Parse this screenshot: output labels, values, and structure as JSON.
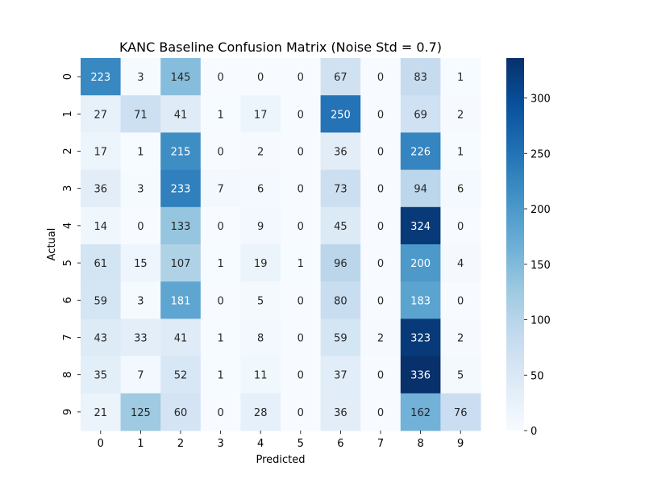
{
  "chart_data": {
    "type": "heatmap",
    "title": "KANC Baseline Confusion Matrix (Noise Std = 0.7)",
    "xlabel": "Predicted",
    "ylabel": "Actual",
    "x_categories": [
      "0",
      "1",
      "2",
      "3",
      "4",
      "5",
      "6",
      "7",
      "8",
      "9"
    ],
    "y_categories": [
      "0",
      "1",
      "2",
      "3",
      "4",
      "5",
      "6",
      "7",
      "8",
      "9"
    ],
    "values": [
      [
        223,
        3,
        145,
        0,
        0,
        0,
        67,
        0,
        83,
        1
      ],
      [
        27,
        71,
        41,
        1,
        17,
        0,
        250,
        0,
        69,
        2
      ],
      [
        17,
        1,
        215,
        0,
        2,
        0,
        36,
        0,
        226,
        1
      ],
      [
        36,
        3,
        233,
        7,
        6,
        0,
        73,
        0,
        94,
        6
      ],
      [
        14,
        0,
        133,
        0,
        9,
        0,
        45,
        0,
        324,
        0
      ],
      [
        61,
        15,
        107,
        1,
        19,
        1,
        96,
        0,
        200,
        4
      ],
      [
        59,
        3,
        181,
        0,
        5,
        0,
        80,
        0,
        183,
        0
      ],
      [
        43,
        33,
        41,
        1,
        8,
        0,
        59,
        2,
        323,
        2
      ],
      [
        35,
        7,
        52,
        1,
        11,
        0,
        37,
        0,
        336,
        5
      ],
      [
        21,
        125,
        60,
        0,
        28,
        0,
        36,
        0,
        162,
        76
      ]
    ],
    "colormap": "Blues",
    "vmin": 0,
    "vmax": 336,
    "colorbar_ticks": [
      0,
      50,
      100,
      150,
      200,
      250,
      300
    ],
    "annotations": true
  }
}
